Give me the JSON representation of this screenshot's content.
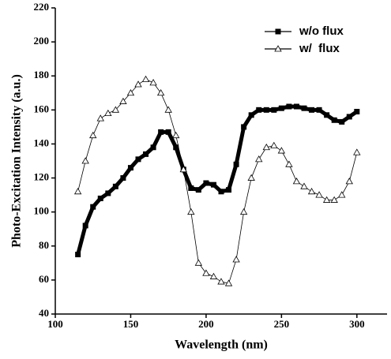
{
  "chart_data": {
    "type": "line",
    "x_label": "Wavelength (nm)",
    "y_label": "Photo-Excitation Intensity (a.u.)",
    "x": [
      115,
      120,
      125,
      130,
      135,
      140,
      145,
      150,
      155,
      160,
      165,
      170,
      175,
      180,
      185,
      190,
      195,
      200,
      205,
      210,
      215,
      220,
      225,
      230,
      235,
      240,
      245,
      250,
      255,
      260,
      265,
      270,
      275,
      280,
      285,
      290,
      295,
      300
    ],
    "series": [
      {
        "name": "w/o flux",
        "color": "#000000",
        "marker": "square",
        "values": [
          75,
          92,
          103,
          108,
          111,
          115,
          120,
          126,
          131,
          134,
          138,
          147,
          147,
          138,
          125,
          114,
          113,
          117,
          116,
          112,
          113,
          128,
          150,
          157,
          160,
          160,
          160,
          161,
          162,
          162,
          161,
          160,
          160,
          157,
          154,
          153,
          156,
          159
        ]
      },
      {
        "name": "w/  flux",
        "color": "#000000",
        "marker": "triangle",
        "values": [
          112,
          130,
          145,
          155,
          158,
          160,
          165,
          170,
          175,
          178,
          176,
          170,
          160,
          145,
          125,
          100,
          70,
          64,
          62,
          59,
          58,
          72,
          100,
          120,
          131,
          138,
          139,
          136,
          128,
          118,
          115,
          112,
          110,
          107,
          107,
          110,
          118,
          135
        ]
      }
    ],
    "xlim": [
      100,
      320
    ],
    "xticks": [
      100,
      150,
      200,
      250,
      300
    ],
    "ylim": [
      40,
      220
    ],
    "yticks": [
      40,
      60,
      80,
      100,
      120,
      140,
      160,
      180,
      200,
      220
    ],
    "legend": "top-right"
  }
}
